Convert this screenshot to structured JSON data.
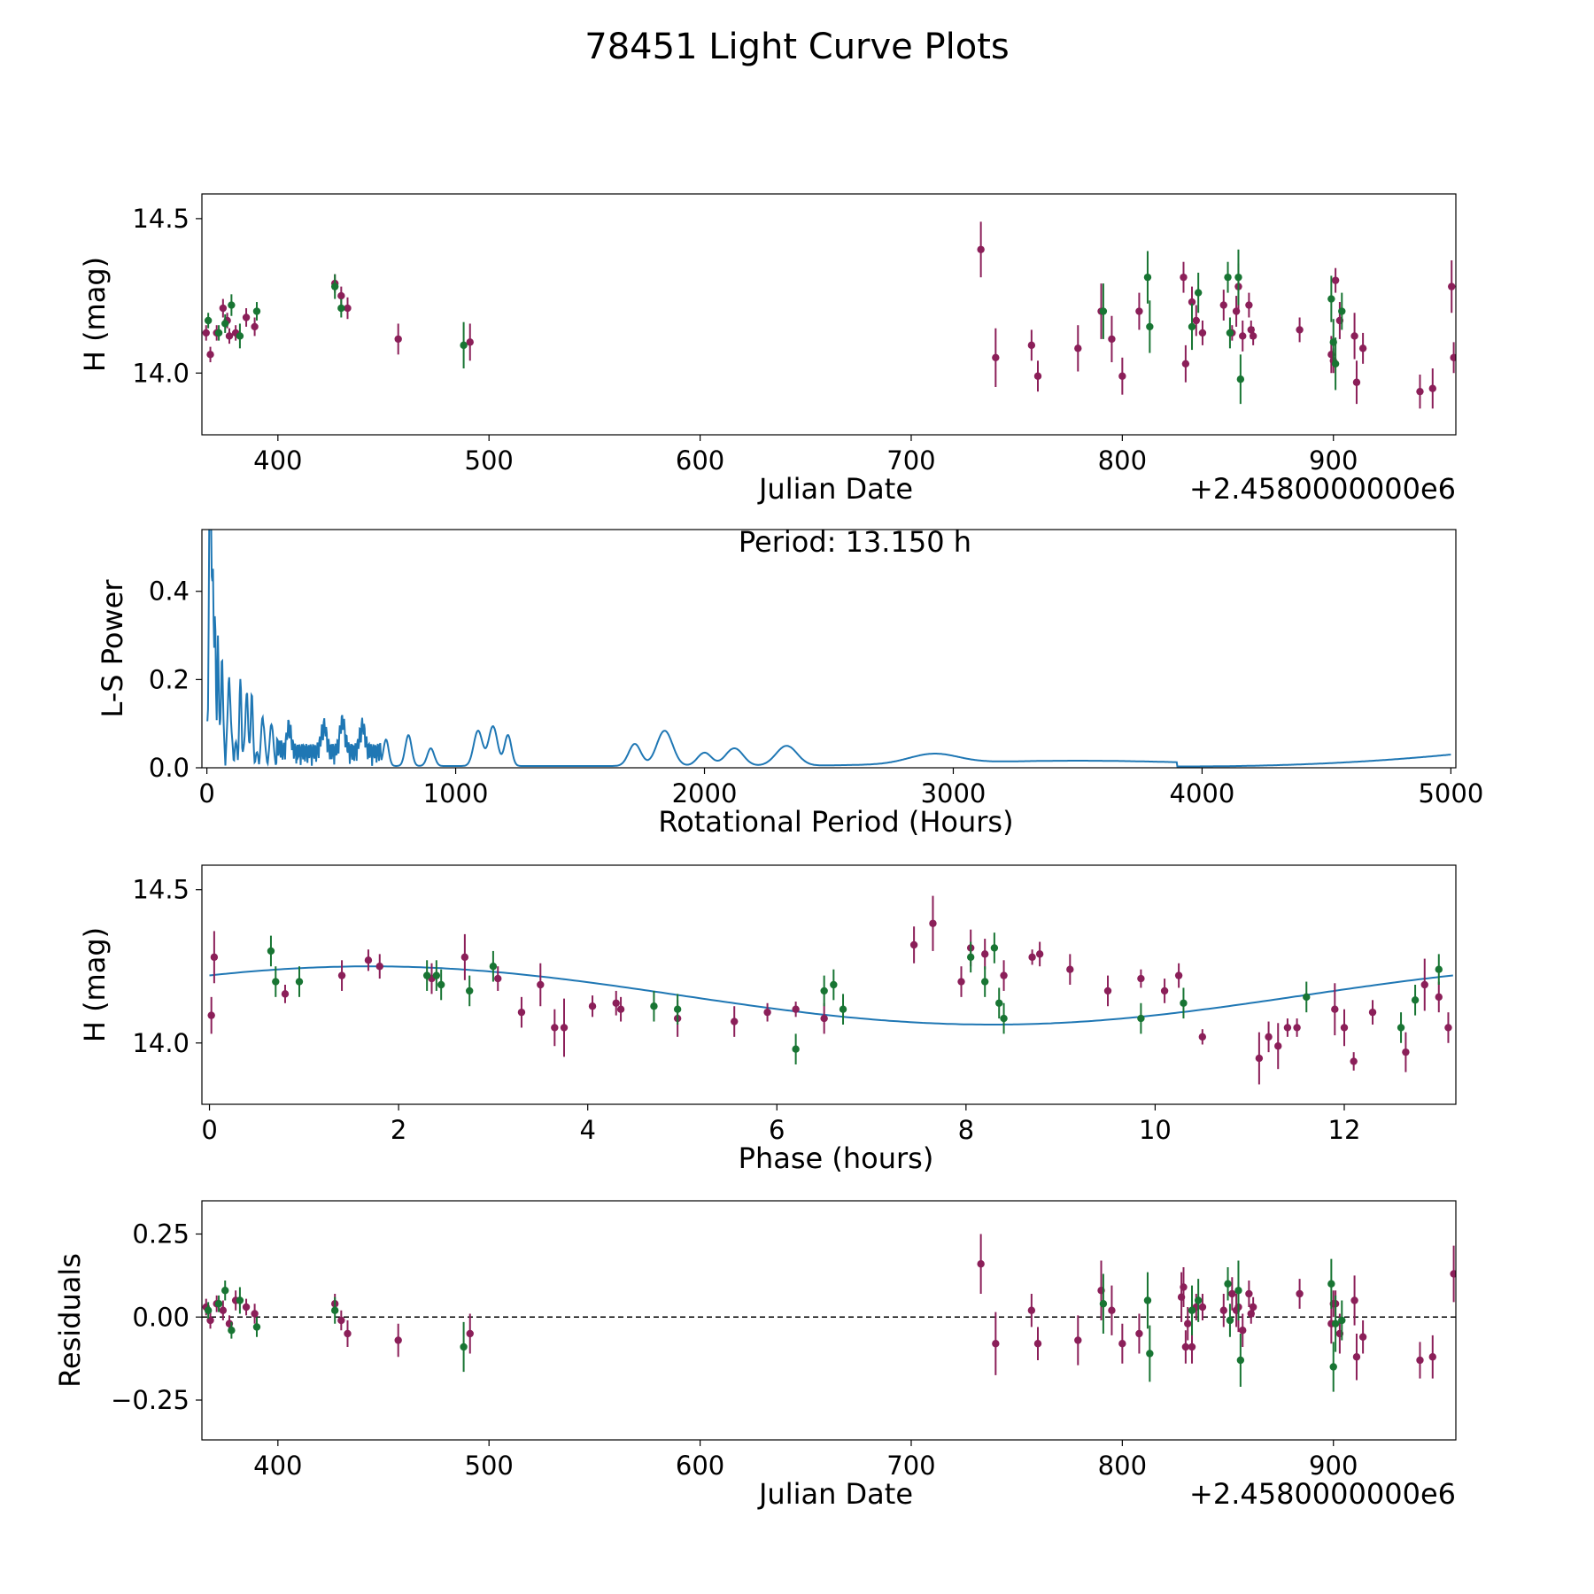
{
  "title": "78451 Light Curve Plots",
  "colors": {
    "magenta_points": "#8b1f59",
    "green_points": "#187533",
    "curve": "#1f77b4",
    "zero_line": "#000000"
  },
  "chart_data": [
    {
      "type": "scatter",
      "name": "light-curve",
      "xlabel": "Julian Date",
      "ylabel": "H (mag)",
      "offset_text": "+2.4580000000e6",
      "xlim": [
        364,
        958
      ],
      "ylim": [
        13.8,
        14.58
      ],
      "xticks": [
        400,
        500,
        600,
        700,
        800,
        900
      ],
      "xtick_labels": [
        "400",
        "500",
        "600",
        "700",
        "800",
        "900"
      ],
      "yticks": [
        14.0,
        14.5
      ],
      "ytick_labels": [
        "14.0",
        "14.5"
      ],
      "series": [
        {
          "name": "magenta",
          "x": [
            366,
            368,
            371,
            374,
            376,
            377,
            380,
            385,
            389,
            427,
            430,
            433,
            457,
            491,
            733,
            740,
            757,
            760,
            779,
            790,
            795,
            800,
            808,
            829,
            830,
            833,
            835,
            838,
            848,
            852,
            854,
            855,
            857,
            860,
            861,
            862,
            884,
            899,
            900,
            901,
            903,
            910,
            911,
            914,
            941,
            947,
            956,
            957
          ],
          "y": [
            14.13,
            14.06,
            14.13,
            14.21,
            14.17,
            14.12,
            14.13,
            14.18,
            14.15,
            14.29,
            14.25,
            14.21,
            14.11,
            14.1,
            14.4,
            14.05,
            14.09,
            13.99,
            14.08,
            14.2,
            14.11,
            13.99,
            14.2,
            14.31,
            14.03,
            14.23,
            14.17,
            14.13,
            14.22,
            14.13,
            14.2,
            14.28,
            14.12,
            14.22,
            14.14,
            14.12,
            14.14,
            14.06,
            14.04,
            14.3,
            14.17,
            14.12,
            13.97,
            14.08,
            13.94,
            13.95,
            14.28,
            14.05
          ],
          "yerr": [
            0.05,
            0.05,
            0.05,
            0.06,
            0.05,
            0.05,
            0.05,
            0.06,
            0.06,
            0.06,
            0.06,
            0.07,
            0.1,
            0.12,
            0.18,
            0.19,
            0.1,
            0.1,
            0.15,
            0.18,
            0.15,
            0.12,
            0.12,
            0.1,
            0.12,
            0.1,
            0.1,
            0.08,
            0.1,
            0.05,
            0.1,
            0.15,
            0.1,
            0.08,
            0.06,
            0.06,
            0.08,
            0.12,
            0.08,
            0.08,
            0.12,
            0.15,
            0.14,
            0.1,
            0.11,
            0.13,
            0.17,
            0.1
          ]
        },
        {
          "name": "green",
          "x": [
            367,
            372,
            375,
            378,
            382,
            390,
            427,
            430,
            488,
            791,
            812,
            813,
            833,
            836,
            850,
            851,
            855,
            856,
            899,
            900,
            901,
            904
          ],
          "y": [
            14.17,
            14.13,
            14.16,
            14.22,
            14.12,
            14.2,
            14.28,
            14.21,
            14.09,
            14.2,
            14.31,
            14.15,
            14.15,
            14.26,
            14.31,
            14.13,
            14.31,
            13.98,
            14.24,
            14.1,
            14.03,
            14.2
          ],
          "yerr": [
            0.05,
            0.05,
            0.06,
            0.07,
            0.08,
            0.06,
            0.08,
            0.06,
            0.15,
            0.18,
            0.17,
            0.17,
            0.15,
            0.13,
            0.1,
            0.1,
            0.18,
            0.16,
            0.15,
            0.15,
            0.17,
            0.12
          ]
        }
      ]
    },
    {
      "type": "line",
      "name": "periodogram",
      "xlabel": "Rotational Period (Hours)",
      "ylabel": "L-S Power",
      "annotation": "Period: 13.150 h",
      "xlim": [
        -20,
        5020
      ],
      "ylim": [
        0,
        0.54
      ],
      "xticks": [
        0,
        1000,
        2000,
        3000,
        4000,
        5000
      ],
      "xtick_labels": [
        "0",
        "1000",
        "2000",
        "3000",
        "4000",
        "5000"
      ],
      "yticks": [
        0.0,
        0.2,
        0.4
      ],
      "ytick_labels": [
        "0.0",
        "0.2",
        "0.4"
      ],
      "peaks": [
        {
          "x": 10,
          "h": 0.54,
          "w": 4
        },
        {
          "x": 16,
          "h": 0.5,
          "w": 4
        },
        {
          "x": 24,
          "h": 0.43,
          "w": 4
        },
        {
          "x": 33,
          "h": 0.25,
          "w": 4
        },
        {
          "x": 44,
          "h": 0.24,
          "w": 4
        },
        {
          "x": 60,
          "h": 0.21,
          "w": 5
        },
        {
          "x": 90,
          "h": 0.18,
          "w": 6
        },
        {
          "x": 135,
          "h": 0.15,
          "w": 6
        },
        {
          "x": 160,
          "h": 0.16,
          "w": 6
        },
        {
          "x": 180,
          "h": 0.14,
          "w": 6
        },
        {
          "x": 225,
          "h": 0.1,
          "w": 8
        },
        {
          "x": 260,
          "h": 0.09,
          "w": 8
        },
        {
          "x": 330,
          "h": 0.06,
          "w": 12
        },
        {
          "x": 470,
          "h": 0.06,
          "w": 15
        },
        {
          "x": 545,
          "h": 0.07,
          "w": 15
        },
        {
          "x": 625,
          "h": 0.06,
          "w": 15
        },
        {
          "x": 720,
          "h": 0.06,
          "w": 15
        },
        {
          "x": 810,
          "h": 0.07,
          "w": 18
        },
        {
          "x": 900,
          "h": 0.04,
          "w": 20
        },
        {
          "x": 1090,
          "h": 0.08,
          "w": 25
        },
        {
          "x": 1150,
          "h": 0.09,
          "w": 25
        },
        {
          "x": 1210,
          "h": 0.07,
          "w": 20
        },
        {
          "x": 1720,
          "h": 0.05,
          "w": 35
        },
        {
          "x": 1840,
          "h": 0.08,
          "w": 45
        },
        {
          "x": 2000,
          "h": 0.03,
          "w": 40
        },
        {
          "x": 2120,
          "h": 0.04,
          "w": 50
        },
        {
          "x": 2330,
          "h": 0.045,
          "w": 60
        },
        {
          "x": 2920,
          "h": 0.022,
          "w": 140
        }
      ]
    },
    {
      "type": "scatter",
      "name": "phased-light-curve",
      "xlabel": "Phase (hours)",
      "ylabel": "H (mag)",
      "xlim": [
        -0.08,
        13.18
      ],
      "ylim": [
        13.8,
        14.58
      ],
      "xticks": [
        0,
        2,
        4,
        6,
        8,
        10,
        12
      ],
      "xtick_labels": [
        "0",
        "2",
        "4",
        "6",
        "8",
        "10",
        "12"
      ],
      "yticks": [
        14.0,
        14.5
      ],
      "ytick_labels": [
        "14.0",
        "14.5"
      ],
      "model": {
        "mean": 14.155,
        "amplitude": 0.095,
        "peak_phase": 1.7,
        "period": 13.15
      },
      "series": [
        {
          "name": "magenta",
          "x": [
            0.02,
            0.05,
            0.8,
            1.4,
            1.68,
            1.8,
            2.35,
            2.7,
            3.05,
            3.3,
            3.5,
            3.65,
            3.75,
            4.05,
            4.3,
            4.35,
            4.95,
            5.55,
            5.9,
            6.2,
            6.5,
            7.45,
            7.65,
            7.95,
            8.05,
            8.2,
            8.4,
            8.7,
            8.78,
            9.1,
            9.5,
            9.85,
            10.1,
            10.25,
            10.5,
            11.1,
            11.2,
            11.3,
            11.4,
            11.5,
            11.9,
            12.0,
            12.1,
            12.3,
            12.65,
            12.85,
            13.0,
            13.1
          ],
          "y": [
            14.09,
            14.28,
            14.16,
            14.22,
            14.27,
            14.25,
            14.21,
            14.28,
            14.21,
            14.1,
            14.19,
            14.05,
            14.05,
            14.12,
            14.13,
            14.11,
            14.08,
            14.07,
            14.1,
            14.11,
            14.08,
            14.32,
            14.39,
            14.2,
            14.31,
            14.29,
            14.22,
            14.28,
            14.29,
            14.24,
            14.17,
            14.21,
            14.17,
            14.22,
            14.02,
            13.95,
            14.02,
            13.99,
            14.05,
            14.05,
            14.11,
            14.05,
            13.94,
            14.1,
            13.97,
            14.19,
            14.15,
            14.05
          ],
          "yerr": [
            0.12,
            0.17,
            0.06,
            0.1,
            0.07,
            0.08,
            0.1,
            0.15,
            0.08,
            0.1,
            0.14,
            0.12,
            0.19,
            0.07,
            0.08,
            0.08,
            0.12,
            0.1,
            0.06,
            0.05,
            0.1,
            0.12,
            0.18,
            0.1,
            0.12,
            0.1,
            0.1,
            0.05,
            0.08,
            0.1,
            0.1,
            0.06,
            0.08,
            0.08,
            0.05,
            0.17,
            0.1,
            0.15,
            0.06,
            0.06,
            0.17,
            0.12,
            0.06,
            0.08,
            0.13,
            0.17,
            0.1,
            0.1
          ]
        },
        {
          "name": "green",
          "x": [
            0.65,
            0.7,
            0.95,
            2.3,
            2.4,
            2.45,
            2.75,
            3.0,
            4.7,
            4.95,
            6.2,
            6.5,
            6.6,
            6.7,
            8.05,
            8.2,
            8.3,
            8.35,
            8.4,
            9.85,
            10.3,
            11.6,
            12.6,
            12.75,
            13.0
          ],
          "y": [
            14.3,
            14.2,
            14.2,
            14.22,
            14.22,
            14.19,
            14.17,
            14.25,
            14.12,
            14.11,
            13.98,
            14.17,
            14.19,
            14.11,
            14.28,
            14.2,
            14.31,
            14.13,
            14.08,
            14.08,
            14.13,
            14.15,
            14.05,
            14.14,
            14.24
          ]
        }
      ]
    },
    {
      "type": "scatter",
      "name": "residuals",
      "xlabel": "Julian Date",
      "ylabel": "Residuals",
      "offset_text": "+2.4580000000e6",
      "xlim": [
        364,
        958
      ],
      "ylim": [
        -0.37,
        0.35
      ],
      "xticks": [
        400,
        500,
        600,
        700,
        800,
        900
      ],
      "xtick_labels": [
        "400",
        "500",
        "600",
        "700",
        "800",
        "900"
      ],
      "yticks": [
        -0.25,
        0.0,
        0.25
      ],
      "ytick_labels": [
        "−0.25",
        "0.00",
        "0.25"
      ],
      "series": [
        {
          "name": "magenta",
          "x": [
            366,
            368,
            371,
            374,
            377,
            380,
            385,
            389,
            427,
            430,
            433,
            457,
            491,
            733,
            740,
            757,
            760,
            779,
            790,
            795,
            800,
            808,
            828,
            829,
            830,
            831,
            833,
            835,
            838,
            848,
            852,
            854,
            855,
            857,
            860,
            861,
            862,
            884,
            899,
            900,
            901,
            903,
            910,
            911,
            914,
            941,
            947,
            957
          ],
          "y": [
            0.03,
            -0.01,
            0.04,
            0.02,
            -0.02,
            0.05,
            0.03,
            0.01,
            0.04,
            -0.01,
            -0.05,
            -0.07,
            -0.05,
            0.16,
            -0.08,
            0.02,
            -0.08,
            -0.07,
            0.08,
            0.02,
            -0.08,
            -0.05,
            0.06,
            0.09,
            -0.09,
            -0.02,
            -0.09,
            0.03,
            0.03,
            0.02,
            0.07,
            0.02,
            0.03,
            -0.04,
            0.07,
            0.01,
            0.03,
            0.07,
            -0.02,
            0.04,
            0.04,
            -0.05,
            0.05,
            -0.12,
            -0.06,
            -0.13,
            -0.12,
            0.13
          ],
          "yerr": [
            0.05,
            0.05,
            0.05,
            0.06,
            0.05,
            0.06,
            0.05,
            0.06,
            0.06,
            0.06,
            0.08,
            0.1,
            0.12,
            0.18,
            0.19,
            0.1,
            0.1,
            0.15,
            0.18,
            0.15,
            0.12,
            0.12,
            0.15,
            0.12,
            0.1,
            0.1,
            0.1,
            0.08,
            0.08,
            0.1,
            0.1,
            0.1,
            0.15,
            0.1,
            0.08,
            0.06,
            0.06,
            0.09,
            0.12,
            0.08,
            0.08,
            0.12,
            0.15,
            0.14,
            0.1,
            0.11,
            0.13,
            0.17
          ]
        },
        {
          "name": "green",
          "x": [
            367,
            372,
            375,
            378,
            382,
            390,
            427,
            488,
            791,
            812,
            813,
            833,
            836,
            850,
            851,
            855,
            856,
            899,
            900,
            901,
            904
          ],
          "y": [
            0.02,
            0.04,
            0.08,
            -0.04,
            0.05,
            -0.03,
            0.02,
            -0.09,
            0.04,
            0.05,
            -0.11,
            0.02,
            0.05,
            0.1,
            -0.01,
            0.08,
            -0.13,
            0.1,
            -0.15,
            -0.02,
            -0.01
          ],
          "yerr": [
            0.05,
            0.05,
            0.06,
            0.05,
            0.08,
            0.06,
            0.08,
            0.15,
            0.18,
            0.17,
            0.17,
            0.15,
            0.13,
            0.1,
            0.1,
            0.18,
            0.16,
            0.15,
            0.15,
            0.17,
            0.12
          ]
        }
      ]
    }
  ]
}
